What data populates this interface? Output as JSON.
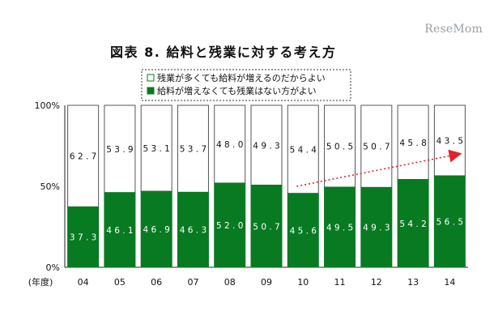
{
  "watermark": "ReseMom",
  "header": {
    "title": "図表 8. 給料と残業に対する考え方"
  },
  "colors": {
    "green": "#087a22",
    "white": "#ffffff",
    "arrow": "#e0222a"
  },
  "chart_data": {
    "type": "bar",
    "stacked": true,
    "title": "図表 8. 給料と残業に対する考え方",
    "categories": [
      "04",
      "05",
      "06",
      "07",
      "08",
      "09",
      "10",
      "11",
      "12",
      "13",
      "14"
    ],
    "x_unit_label": "(年度)",
    "y_ticks": [
      "100%",
      "50%",
      "0%"
    ],
    "ylim": [
      0,
      100
    ],
    "legend_position": "top",
    "series": [
      {
        "name": "給料が増えなくても残業はない方がよい",
        "color": "#087a22",
        "values": [
          37.3,
          46.1,
          46.9,
          46.3,
          52.0,
          50.7,
          45.6,
          49.5,
          49.3,
          54.2,
          56.5
        ]
      },
      {
        "name": "残業が多くても給料が増えるのだからよい",
        "color": "#ffffff",
        "values": [
          62.7,
          53.9,
          53.1,
          53.7,
          48.0,
          49.3,
          54.4,
          50.5,
          50.7,
          45.8,
          43.5
        ]
      }
    ],
    "annotation": {
      "type": "dotted-arrow",
      "color": "#e0222a",
      "from_category": "10",
      "to_category": "14"
    }
  }
}
